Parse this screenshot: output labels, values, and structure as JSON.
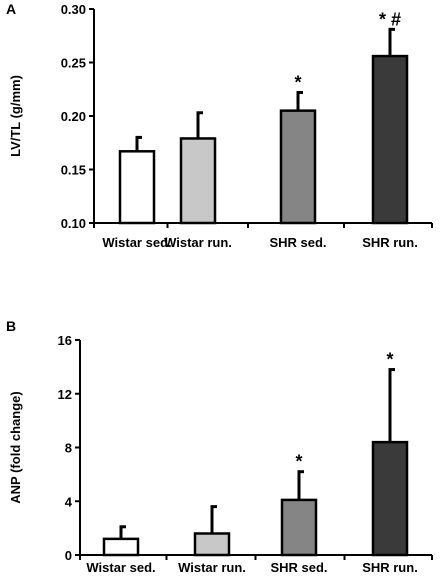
{
  "chart_data": [
    {
      "panel": "A",
      "type": "bar",
      "categories": [
        "Wistar sed.",
        "Wistar run.",
        "SHR sed.",
        "SHR run."
      ],
      "values": [
        0.167,
        0.179,
        0.205,
        0.256
      ],
      "errors": [
        0.013,
        0.024,
        0.017,
        0.025
      ],
      "annotations": [
        "",
        "",
        "*",
        "* #"
      ],
      "colors": [
        "#ffffff",
        "#c8c8c8",
        "#858585",
        "#3a3a3a"
      ],
      "ylabel": "LV/TL (g/mm)",
      "ylim": [
        0.1,
        0.3
      ],
      "yticks": [
        "0.10",
        "0.15",
        "0.20",
        "0.25",
        "0.30"
      ],
      "ytick_values": [
        0.1,
        0.15,
        0.2,
        0.25,
        0.3
      ]
    },
    {
      "panel": "B",
      "type": "bar",
      "categories": [
        "Wistar sed.",
        "Wistar run.",
        "SHR sed.",
        "SHR run."
      ],
      "values": [
        1.2,
        1.6,
        4.1,
        8.4
      ],
      "errors": [
        0.9,
        2.0,
        2.1,
        5.4
      ],
      "annotations": [
        "",
        "",
        "*",
        "*"
      ],
      "colors": [
        "#ffffff",
        "#c8c8c8",
        "#858585",
        "#3a3a3a"
      ],
      "ylabel": "ANP (fold change)",
      "ylim": [
        0,
        16
      ],
      "yticks": [
        "0",
        "4",
        "8",
        "12",
        "16"
      ],
      "ytick_values": [
        0,
        4,
        8,
        12,
        16
      ]
    }
  ]
}
